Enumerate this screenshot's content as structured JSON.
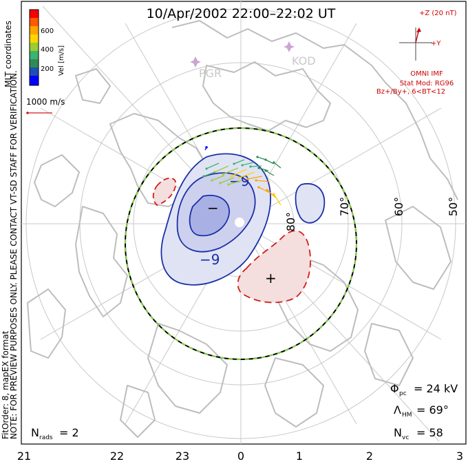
{
  "title": "10/Apr/2002 22:00–22:02 UT",
  "color_scale": {
    "label": "Vel [m/s]",
    "ticks": [
      "600",
      "400",
      "200"
    ],
    "colors": [
      "#ff0000",
      "#ff5a00",
      "#ffa500",
      "#ffd400",
      "#9acd32",
      "#3cb371",
      "#2e8b57",
      "#1e4fb5",
      "#0000ff"
    ]
  },
  "mlt_label": "MLT coordinates",
  "velocity_reference": "1000 m/s",
  "stations": [
    "PGR",
    "KOD"
  ],
  "imf": {
    "z_label": "+Z (20 nT)",
    "y_label": "+Y",
    "source": "OMNI IMF",
    "model_line1": "Stat Mod: RG96",
    "model_line2": "Bz+/By+, 6<BT<12"
  },
  "latitude_labels": [
    "80°",
    "70°",
    "60°",
    "50°"
  ],
  "mlt_hours": [
    "21",
    "22",
    "23",
    "0",
    "1",
    "2",
    "3"
  ],
  "contours": {
    "neg_label": "−9",
    "neg_label_2": "−9",
    "min_marker": "−",
    "max_marker": "+"
  },
  "note_line1": "NOTE: FOR PREVIEW PURPOSES ONLY. PLEASE CONTACT VT-SD STAFF FOR VERIFICATION.",
  "note_line2": "FitOrder: 8, mapEX format",
  "stats": {
    "nrads_label": "N",
    "nrads_sub": "rads",
    "nrads_value": "= 2",
    "phi_label": "Φ",
    "phi_sub": "pc",
    "phi_value": "= 24 kV",
    "lambda_label": "Λ",
    "lambda_sub": "HM",
    "lambda_value": "= 69°",
    "nvc_label": "N",
    "nvc_sub": "vc",
    "nvc_value": "= 58"
  },
  "colors": {
    "frame": "#000000",
    "grid": "#c8c8c8",
    "coast": "#bdbdbd",
    "neg_contour": "#1a2fa8",
    "neg_fill": "#e0e3f4",
    "neg_fill_inner": "#b0b6e6",
    "pos_contour": "#d11a1a",
    "pos_fill": "#f4dede",
    "imf": "#cc0000",
    "boundary_green": "#7fd13b",
    "station": "#c9a7d0"
  }
}
